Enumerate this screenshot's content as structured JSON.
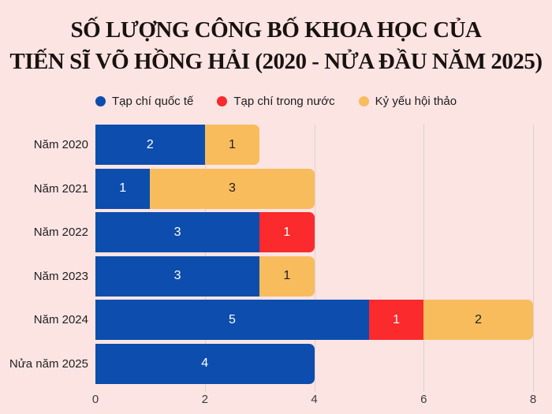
{
  "title": {
    "line1": "SỐ LƯỢNG CÔNG BỐ KHOA HỌC CỦA",
    "line2": "TIẾN SĨ VÕ HỒNG HẢI (2020 - NỬA ĐẦU NĂM 2025)"
  },
  "colors": {
    "background": "#fce4e3",
    "blue": "#0d4dad",
    "red": "#fa2a2d",
    "orange": "#f8bc5d",
    "gridline": "#decfce",
    "title_text": "#191310"
  },
  "legend": [
    {
      "label": "Tạp chí quốc tế",
      "color": "#0d4dad"
    },
    {
      "label": "Tạp chí trong nước",
      "color": "#fa2a2d"
    },
    {
      "label": "Kỷ yếu hội thảo",
      "color": "#f8bc5d"
    }
  ],
  "chart_data": {
    "type": "bar",
    "orientation": "horizontal",
    "stacked": true,
    "title": "SỐ LƯỢNG CÔNG BỐ KHOA HỌC CỦA TIẾN SĨ VÕ HỒNG HẢI (2020 - NỬA ĐẦU NĂM 2025)",
    "categories": [
      "Năm 2020",
      "Năm 2021",
      "Năm 2022",
      "Năm 2023",
      "Năm 2024",
      "Nửa năm 2025"
    ],
    "series": [
      {
        "name": "Tạp chí quốc tế",
        "color": "#0d4dad",
        "label_color": "#ffffff",
        "values": [
          2,
          1,
          3,
          3,
          5,
          4
        ]
      },
      {
        "name": "Tạp chí trong nước",
        "color": "#fa2a2d",
        "label_color": "#ffffff",
        "values": [
          0,
          0,
          1,
          0,
          1,
          0
        ]
      },
      {
        "name": "Kỷ yếu hội thảo",
        "color": "#f8bc5d",
        "label_color": "#1f1f1f",
        "values": [
          1,
          3,
          0,
          1,
          2,
          0
        ]
      }
    ],
    "totals": [
      3,
      4,
      4,
      4,
      8,
      4
    ],
    "xlabel": "",
    "ylabel": "",
    "xlim": [
      0,
      8
    ],
    "xticks": [
      0,
      2,
      4,
      6,
      8
    ],
    "grid": "vertical, behind bars",
    "legend_position": "top center",
    "value_labels": "inside each nonzero segment"
  }
}
